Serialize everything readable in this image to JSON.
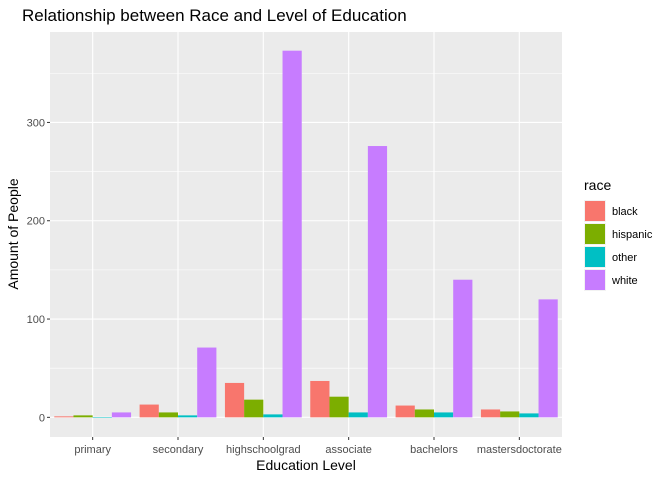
{
  "chart_data": {
    "type": "bar",
    "title": "Relationship between Race and Level of Education",
    "xlabel": "Education Level",
    "ylabel": "Amount of People",
    "categories": [
      "primary",
      "secondary",
      "highschoolgrad",
      "associate",
      "bachelors",
      "mastersdoctorate"
    ],
    "series": [
      {
        "name": "black",
        "color": "#F8766D",
        "values": [
          1,
          13,
          35,
          37,
          12,
          8
        ]
      },
      {
        "name": "hispanic",
        "color": "#7CAE00",
        "values": [
          2,
          5,
          18,
          21,
          8,
          6
        ]
      },
      {
        "name": "other",
        "color": "#00BFC4",
        "values": [
          0,
          2,
          3,
          5,
          5,
          4
        ]
      },
      {
        "name": "white",
        "color": "#C77CFF",
        "values": [
          5,
          71,
          373,
          276,
          140,
          120
        ]
      }
    ],
    "ylim": [
      -20,
      392
    ],
    "yticks": [
      0,
      100,
      200,
      300
    ],
    "legend_title": "race",
    "legend_position": "right",
    "grid": true,
    "panel_background": "#EBEBEB",
    "grid_color": "#FFFFFF"
  }
}
